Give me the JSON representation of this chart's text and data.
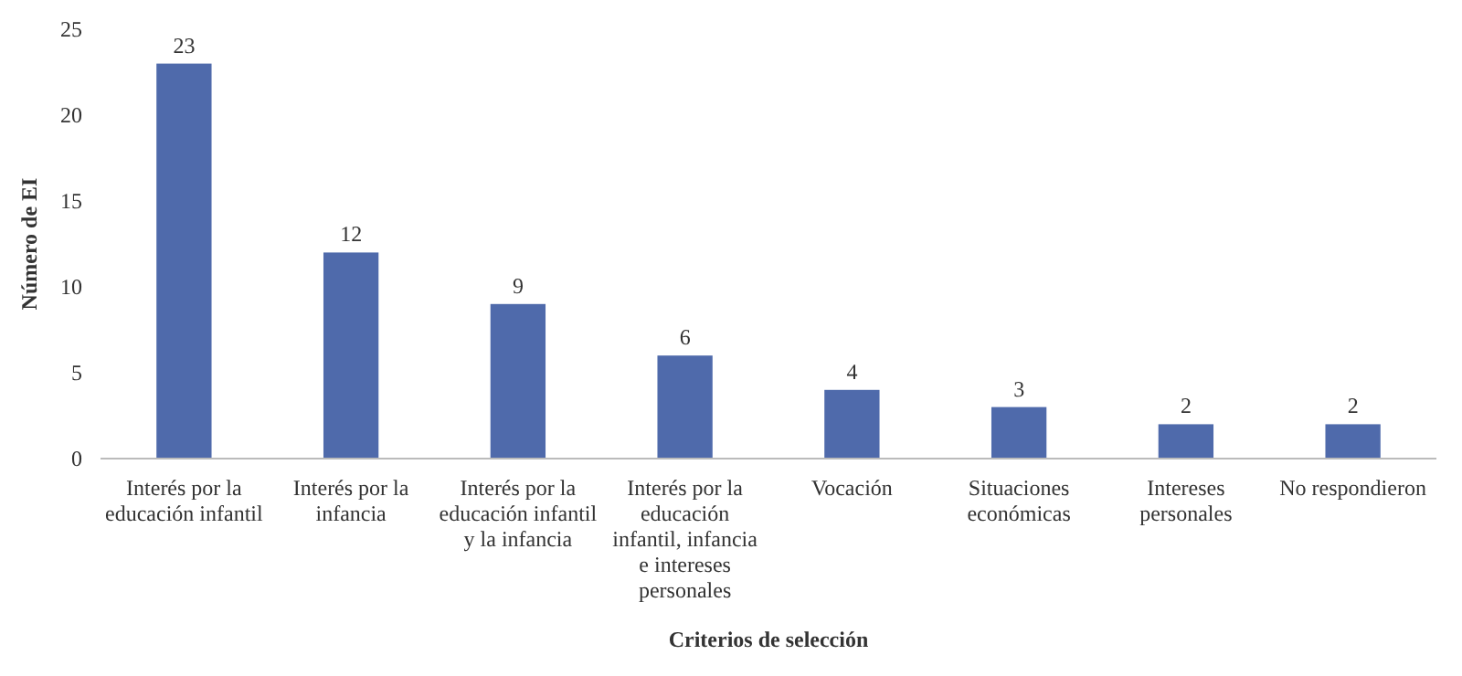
{
  "chart_data": {
    "type": "bar",
    "xlabel": "Criterios de selección",
    "ylabel": "Número de EI",
    "categories": [
      "Interés por la educación infantil",
      "Interés por la infancia",
      "Interés por la educación infantil y la infancia",
      "Interés por la educación infantil, infancia e intereses personales",
      "Vocación",
      "Situaciones económicas",
      "Intereses personales",
      "No respondieron"
    ],
    "values": [
      23,
      12,
      9,
      6,
      4,
      3,
      2,
      2
    ],
    "color": "#4f6aab",
    "ylim": [
      0,
      25
    ],
    "yticks": [
      0,
      5,
      10,
      15,
      20,
      25
    ],
    "data_labels": true,
    "grid": false
  }
}
